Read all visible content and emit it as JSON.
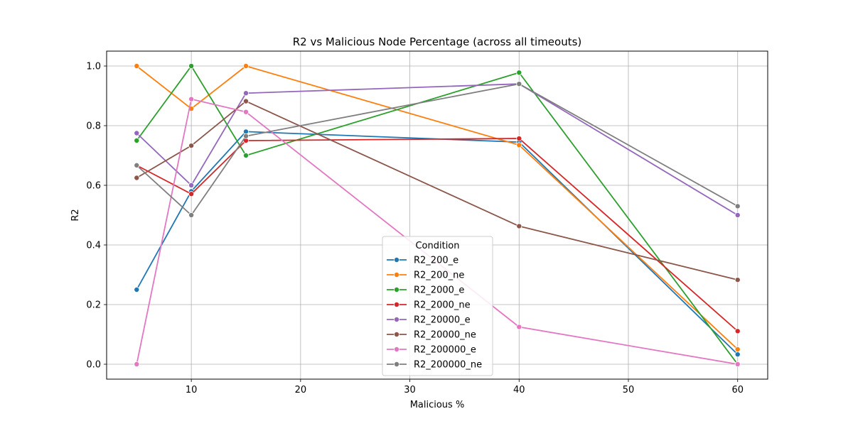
{
  "chart_data": {
    "type": "line",
    "title": "R2 vs Malicious Node Percentage (across all timeouts)",
    "xlabel": "Malicious %",
    "ylabel": "R2",
    "xlim": [
      2.25,
      62.75
    ],
    "ylim": [
      -0.05,
      1.05
    ],
    "xticks": [
      10,
      20,
      30,
      40,
      50,
      60
    ],
    "yticks": [
      0.0,
      0.2,
      0.4,
      0.6,
      0.8,
      1.0
    ],
    "xtick_labels": [
      "10",
      "20",
      "30",
      "40",
      "50",
      "60"
    ],
    "ytick_labels": [
      "0.0",
      "0.2",
      "0.4",
      "0.6",
      "0.8",
      "1.0"
    ],
    "grid": true,
    "legend": {
      "title": "Condition",
      "position": "lower center"
    },
    "x": [
      5,
      10,
      15,
      40,
      60
    ],
    "series": [
      {
        "name": "R2_200_e",
        "color": "#1f77b4",
        "values": [
          0.25,
          0.58,
          0.78,
          0.745,
          0.033
        ]
      },
      {
        "name": "R2_200_ne",
        "color": "#ff7f0e",
        "values": [
          1.0,
          0.857,
          1.0,
          0.735,
          0.05
        ]
      },
      {
        "name": "R2_2000_e",
        "color": "#2ca02c",
        "values": [
          0.75,
          1.0,
          0.7,
          0.978,
          0.0
        ]
      },
      {
        "name": "R2_2000_ne",
        "color": "#d62728",
        "values": [
          0.667,
          0.571,
          0.75,
          0.757,
          0.111
        ]
      },
      {
        "name": "R2_20000_e",
        "color": "#9467bd",
        "values": [
          0.775,
          0.6,
          0.909,
          0.94,
          0.5
        ]
      },
      {
        "name": "R2_20000_ne",
        "color": "#8c564b",
        "values": [
          0.625,
          0.733,
          0.882,
          0.463,
          0.283
        ]
      },
      {
        "name": "R2_200000_e",
        "color": "#e377c2",
        "values": [
          0.0,
          0.889,
          0.846,
          0.125,
          0.0
        ]
      },
      {
        "name": "R2_200000_ne",
        "color": "#7f7f7f",
        "values": [
          0.667,
          0.5,
          0.765,
          0.94,
          0.53
        ]
      }
    ]
  }
}
